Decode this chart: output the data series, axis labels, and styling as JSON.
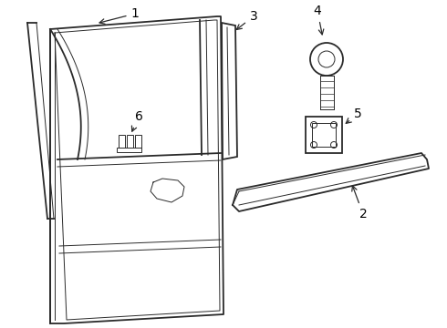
{
  "bg_color": "#ffffff",
  "line_color": "#2a2a2a",
  "label_color": "#000000",
  "fig_width": 4.9,
  "fig_height": 3.6,
  "dpi": 100,
  "lw_main": 1.3,
  "lw_thin": 0.7,
  "lw_thick": 1.6
}
